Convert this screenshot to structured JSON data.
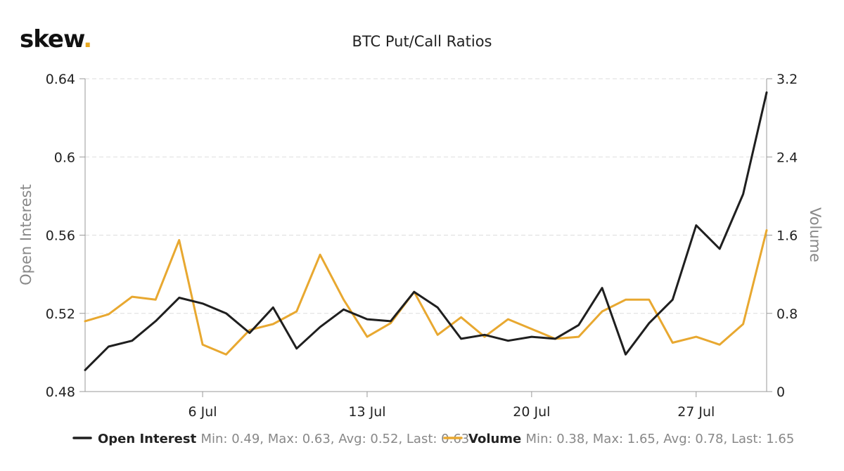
{
  "brand": {
    "logo_text": "skew",
    "logo_dot": ".",
    "dot_color": "#e8a820"
  },
  "chart_data": {
    "type": "line",
    "title": "BTC Put/Call Ratios",
    "x_tick_labels": [
      "6 Jul",
      "13 Jul",
      "20 Jul",
      "27 Jul"
    ],
    "x_tick_days": [
      6,
      13,
      20,
      27
    ],
    "x_range_days": [
      1,
      30
    ],
    "left_axis": {
      "label": "Open Interest",
      "range": [
        0.48,
        0.64
      ],
      "ticks": [
        "0.48",
        "0.52",
        "0.56",
        "0.6",
        "0.64"
      ]
    },
    "right_axis": {
      "label": "Volume",
      "range": [
        0,
        3.2
      ],
      "ticks": [
        "0",
        "0.8",
        "1.6",
        "2.4",
        "3.2"
      ]
    },
    "grid": "horizontal-dashed",
    "legend_position": "bottom",
    "series": [
      {
        "name": "Open Interest",
        "axis": "left",
        "color": "#1f1f1f",
        "stats": "Min: 0.49, Max: 0.63, Avg: 0.52, Last: 0.63",
        "x": [
          1,
          2,
          3,
          4,
          5,
          6,
          7,
          8,
          9,
          10,
          11,
          12,
          13,
          14,
          15,
          16,
          17,
          18,
          19,
          20,
          21,
          22,
          23,
          24,
          25,
          26,
          27,
          28,
          29,
          30
        ],
        "values": [
          0.491,
          0.503,
          0.506,
          0.516,
          0.528,
          0.525,
          0.52,
          0.51,
          0.523,
          0.502,
          0.513,
          0.522,
          0.517,
          0.516,
          0.531,
          0.523,
          0.507,
          0.509,
          0.506,
          0.508,
          0.507,
          0.514,
          0.533,
          0.499,
          0.515,
          0.527,
          0.565,
          0.553,
          0.581,
          0.633
        ]
      },
      {
        "name": "Volume",
        "axis": "right",
        "color": "#e8a830",
        "stats": "Min: 0.38, Max: 1.65, Avg: 0.78, Last: 1.65",
        "x": [
          1,
          2,
          3,
          4,
          5,
          6,
          7,
          8,
          9,
          10,
          11,
          12,
          13,
          14,
          15,
          16,
          17,
          18,
          19,
          20,
          21,
          22,
          23,
          24,
          25,
          26,
          27,
          28,
          29,
          30
        ],
        "values": [
          0.72,
          0.79,
          0.97,
          0.94,
          1.55,
          0.48,
          0.38,
          0.63,
          0.69,
          0.82,
          1.4,
          0.94,
          0.56,
          0.7,
          1.02,
          0.58,
          0.76,
          0.56,
          0.74,
          0.64,
          0.54,
          0.56,
          0.82,
          0.94,
          0.94,
          0.5,
          0.56,
          0.48,
          0.69,
          1.65
        ]
      }
    ]
  }
}
